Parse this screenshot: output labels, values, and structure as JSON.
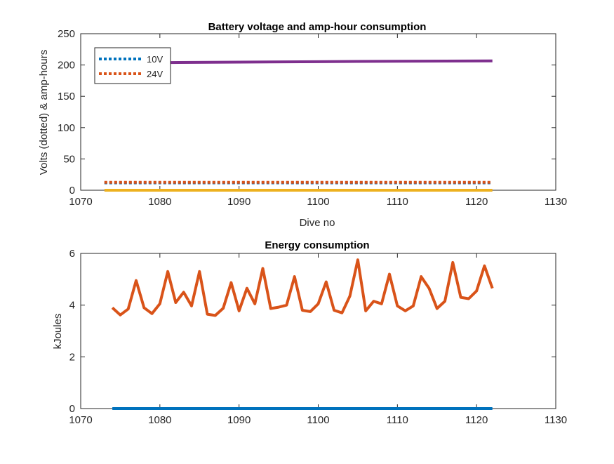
{
  "chart_data": [
    {
      "type": "line",
      "title": "Battery voltage and amp-hour consumption",
      "xlabel": "Dive no",
      "ylabel": "Volts (dotted) & amp-hours",
      "xlim": [
        1070,
        1130
      ],
      "ylim": [
        0,
        250
      ],
      "xticks": [
        "1070",
        "1080",
        "1090",
        "1100",
        "1110",
        "1120",
        "1130"
      ],
      "yticks": [
        "0",
        "50",
        "100",
        "150",
        "200",
        "250"
      ],
      "legend": {
        "placement": "top-left",
        "entries": [
          "10V",
          "24V"
        ]
      },
      "series": [
        {
          "name": "10V",
          "style": "dotted",
          "color": "#0072BD",
          "x": [
            1073,
            1122
          ],
          "y": [
            11.8,
            11.8
          ]
        },
        {
          "name": "24V",
          "style": "dotted",
          "color": "#D95319",
          "x": [
            1073,
            1122
          ],
          "y": [
            12.6,
            12.6
          ]
        },
        {
          "style": "solid",
          "color": "#EDB120",
          "x": [
            1073,
            1122
          ],
          "y": [
            0,
            0
          ]
        },
        {
          "style": "solid",
          "color": "#7E2F8E",
          "x": [
            1073,
            1080,
            1090,
            1100,
            1110,
            1122
          ],
          "y": [
            203,
            203.8,
            204.6,
            205.3,
            206.0,
            206.6
          ]
        }
      ]
    },
    {
      "type": "line",
      "title": "Energy consumption",
      "xlabel": "",
      "ylabel": "kJoules",
      "xlim": [
        1070,
        1130
      ],
      "ylim": [
        0,
        6
      ],
      "xticks": [
        "1070",
        "1080",
        "1090",
        "1100",
        "1110",
        "1120",
        "1130"
      ],
      "yticks": [
        "0",
        "2",
        "4",
        "6"
      ],
      "series": [
        {
          "style": "solid",
          "color": "#0072BD",
          "x": [
            1074,
            1122
          ],
          "y": [
            0,
            0
          ]
        },
        {
          "style": "solid",
          "color": "#D95319",
          "x": [
            1074,
            1075,
            1076,
            1077,
            1078,
            1079,
            1080,
            1081,
            1082,
            1083,
            1084,
            1085,
            1086,
            1087,
            1088,
            1089,
            1090,
            1091,
            1092,
            1093,
            1094,
            1095,
            1096,
            1097,
            1098,
            1099,
            1100,
            1101,
            1102,
            1103,
            1104,
            1105,
            1106,
            1107,
            1108,
            1109,
            1110,
            1111,
            1112,
            1113,
            1114,
            1115,
            1116,
            1117,
            1118,
            1119,
            1120,
            1121,
            1122
          ],
          "y": [
            3.9,
            3.62,
            3.85,
            4.95,
            3.9,
            3.67,
            4.05,
            5.3,
            4.1,
            4.5,
            3.97,
            5.3,
            3.65,
            3.6,
            3.88,
            4.87,
            3.78,
            4.65,
            4.05,
            5.42,
            3.87,
            3.92,
            4.0,
            5.1,
            3.8,
            3.75,
            4.05,
            4.9,
            3.8,
            3.7,
            4.35,
            5.75,
            3.78,
            4.15,
            4.05,
            5.2,
            3.97,
            3.78,
            3.97,
            5.1,
            4.65,
            3.87,
            4.15,
            5.65,
            4.3,
            4.25,
            4.55,
            5.52,
            4.65
          ]
        }
      ]
    }
  ]
}
